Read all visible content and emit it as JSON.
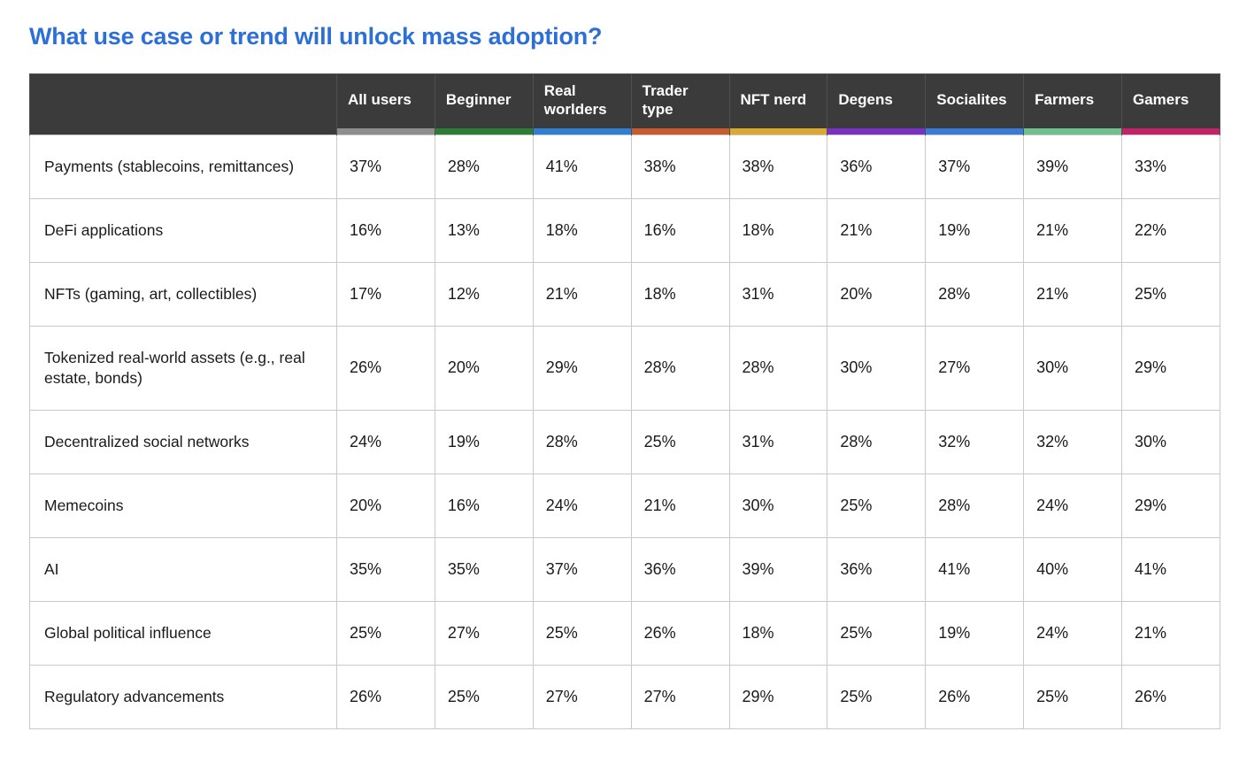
{
  "page": {
    "title": "What use case or trend will unlock mass adoption?"
  },
  "theme": {
    "title_color": "#2c6fd6",
    "header_bg": "#3b3b3b",
    "header_text": "#ffffff",
    "grid_border": "#c9c9c9"
  },
  "chart_data": {
    "type": "table",
    "title": "What use case or trend will unlock mass adoption?",
    "columns": [
      {
        "label": "All users",
        "accent": "#8e8e8e"
      },
      {
        "label": "Beginner",
        "accent": "#2e7d36"
      },
      {
        "label": "Real worlders",
        "accent": "#2f7fd3"
      },
      {
        "label": "Trader type",
        "accent": "#c75b2e"
      },
      {
        "label": "NFT nerd",
        "accent": "#d9a931"
      },
      {
        "label": "Degens",
        "accent": "#7a30c4"
      },
      {
        "label": "Socialites",
        "accent": "#3a7bd5"
      },
      {
        "label": "Farmers",
        "accent": "#6fc08f"
      },
      {
        "label": "Gamers",
        "accent": "#c22368"
      }
    ],
    "rows": [
      {
        "label": "Payments (stablecoins, remittances)",
        "values": [
          "37%",
          "28%",
          "41%",
          "38%",
          "38%",
          "36%",
          "37%",
          "39%",
          "33%"
        ]
      },
      {
        "label": "DeFi applications",
        "values": [
          "16%",
          "13%",
          "18%",
          "16%",
          "18%",
          "21%",
          "19%",
          "21%",
          "22%"
        ]
      },
      {
        "label": "NFTs (gaming, art, collectibles)",
        "values": [
          "17%",
          "12%",
          "21%",
          "18%",
          "31%",
          "20%",
          "28%",
          "21%",
          "25%"
        ]
      },
      {
        "label": "Tokenized real-world assets (e.g., real estate, bonds)",
        "values": [
          "26%",
          "20%",
          "29%",
          "28%",
          "28%",
          "30%",
          "27%",
          "30%",
          "29%"
        ]
      },
      {
        "label": "Decentralized social networks",
        "values": [
          "24%",
          "19%",
          "28%",
          "25%",
          "31%",
          "28%",
          "32%",
          "32%",
          "30%"
        ]
      },
      {
        "label": "Memecoins",
        "values": [
          "20%",
          "16%",
          "24%",
          "21%",
          "30%",
          "25%",
          "28%",
          "24%",
          "29%"
        ]
      },
      {
        "label": "AI",
        "values": [
          "35%",
          "35%",
          "37%",
          "36%",
          "39%",
          "36%",
          "41%",
          "40%",
          "41%"
        ]
      },
      {
        "label": "Global political influence",
        "values": [
          "25%",
          "27%",
          "25%",
          "26%",
          "18%",
          "25%",
          "19%",
          "24%",
          "21%"
        ]
      },
      {
        "label": "Regulatory advancements",
        "values": [
          "26%",
          "25%",
          "27%",
          "27%",
          "29%",
          "25%",
          "26%",
          "25%",
          "26%"
        ]
      }
    ]
  }
}
